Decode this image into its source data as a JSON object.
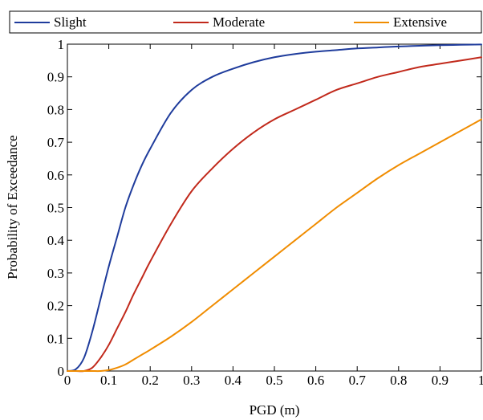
{
  "chart_data": {
    "type": "line",
    "title": "",
    "xlabel": "PGD (m)",
    "ylabel": "Probability of Exceedance",
    "xlim": [
      0,
      1
    ],
    "ylim": [
      0,
      1
    ],
    "x_ticks": [
      "0",
      "0.1",
      "0.2",
      "0.3",
      "0.4",
      "0.5",
      "0.6",
      "0.7",
      "0.8",
      "0.9",
      "1"
    ],
    "y_ticks": [
      "0",
      "0.1",
      "0.2",
      "0.3",
      "0.4",
      "0.5",
      "0.6",
      "0.7",
      "0.8",
      "0.9",
      "1"
    ],
    "grid": false,
    "legend_position": "top",
    "legend_orientation": "horizontal",
    "x": [
      0.0,
      0.02,
      0.04,
      0.06,
      0.08,
      0.1,
      0.12,
      0.14,
      0.16,
      0.18,
      0.2,
      0.25,
      0.3,
      0.35,
      0.4,
      0.45,
      0.5,
      0.55,
      0.6,
      0.65,
      0.7,
      0.75,
      0.8,
      0.85,
      0.9,
      0.95,
      1.0
    ],
    "series": [
      {
        "name": "Slight",
        "color": "#1f3c9c",
        "values": [
          0.0,
          0.005,
          0.04,
          0.12,
          0.22,
          0.32,
          0.41,
          0.5,
          0.57,
          0.63,
          0.68,
          0.79,
          0.86,
          0.9,
          0.925,
          0.945,
          0.96,
          0.97,
          0.977,
          0.982,
          0.987,
          0.99,
          0.993,
          0.995,
          0.997,
          0.998,
          0.999
        ]
      },
      {
        "name": "Moderate",
        "color": "#c1291b",
        "values": [
          0.0,
          0.0,
          0.0,
          0.01,
          0.04,
          0.08,
          0.13,
          0.18,
          0.235,
          0.285,
          0.335,
          0.45,
          0.55,
          0.62,
          0.68,
          0.73,
          0.77,
          0.8,
          0.83,
          0.86,
          0.88,
          0.9,
          0.915,
          0.93,
          0.94,
          0.95,
          0.96
        ]
      },
      {
        "name": "Extensive",
        "color": "#f08c00",
        "values": [
          0.0,
          0.0,
          0.0,
          0.0,
          0.0,
          0.003,
          0.01,
          0.02,
          0.035,
          0.05,
          0.065,
          0.105,
          0.15,
          0.2,
          0.25,
          0.3,
          0.35,
          0.4,
          0.45,
          0.5,
          0.545,
          0.59,
          0.63,
          0.665,
          0.7,
          0.735,
          0.77
        ]
      }
    ]
  }
}
